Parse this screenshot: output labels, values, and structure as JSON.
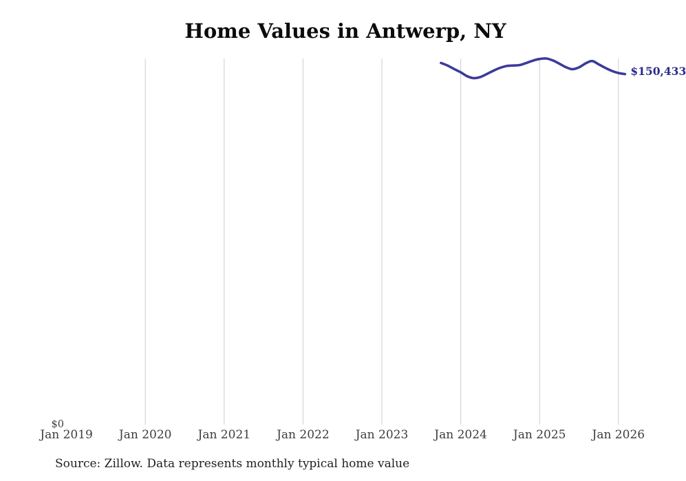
{
  "colors": {
    "line": "#3b3b9b",
    "value_label": "#2b2b8a",
    "gridline": "#cdcdcd",
    "tick_text": "#3d3d3d",
    "title_text": "#0c0c0c",
    "source_text": "#1f1f1f",
    "background": "#ffffff"
  },
  "chart_data": {
    "type": "line",
    "title": "Home Values in Antwerp, NY",
    "xlabel": "",
    "ylabel": "",
    "x_ticks": [
      "Jan 2019",
      "Jan 2020",
      "Jan 2021",
      "Jan 2022",
      "Jan 2023",
      "Jan 2024",
      "Jan 2025",
      "Jan 2026"
    ],
    "y_ticks": [
      "$0"
    ],
    "ylim": [
      0,
      157100
    ],
    "grid": "vertical",
    "end_label": "$150,433",
    "source": "Source: Zillow. Data represents monthly typical home value",
    "series": [
      {
        "name": "Typical home value",
        "months": [
          "Oct 2023",
          "Nov 2023",
          "Dec 2023",
          "Jan 2024",
          "Feb 2024",
          "Mar 2024",
          "Apr 2024",
          "May 2024",
          "Jun 2024",
          "Jul 2024",
          "Aug 2024",
          "Sep 2024",
          "Oct 2024",
          "Nov 2024",
          "Dec 2024",
          "Jan 2025",
          "Feb 2025",
          "Mar 2025",
          "Apr 2025",
          "May 2025",
          "Jun 2025",
          "Jul 2025",
          "Aug 2025",
          "Sep 2025",
          "Oct 2025",
          "Nov 2025",
          "Dec 2025",
          "Jan 2026",
          "Feb 2026"
        ],
        "values": [
          155200,
          154100,
          152600,
          151200,
          149500,
          148700,
          149200,
          150500,
          151900,
          153100,
          153900,
          154100,
          154300,
          155200,
          156200,
          156900,
          157100,
          156300,
          154900,
          153400,
          152500,
          153300,
          155000,
          156000,
          154600,
          153100,
          151800,
          150900,
          150433
        ]
      }
    ]
  }
}
